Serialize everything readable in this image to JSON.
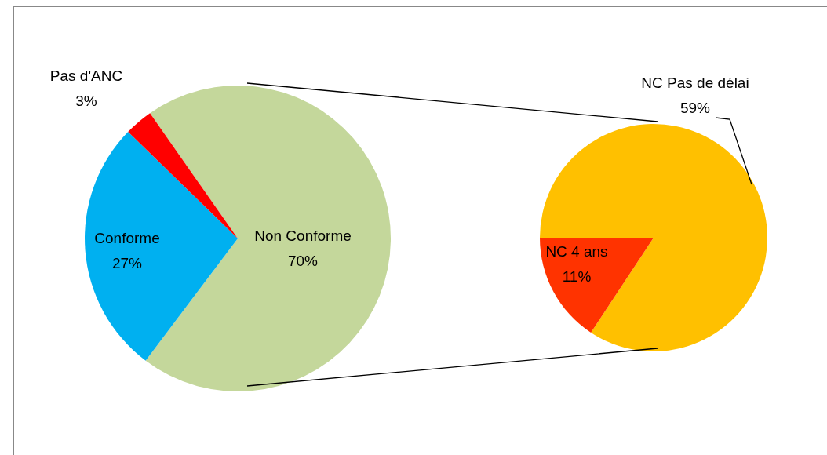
{
  "chart_data": [
    {
      "type": "pie",
      "categories": [
        "Non Conforme",
        "Conforme",
        "Pas d'ANC"
      ],
      "values": [
        70,
        27,
        3
      ],
      "value_labels": [
        "70%",
        "27%",
        "3%"
      ],
      "colors": [
        "#c4d79b",
        "#00b0f0",
        "#ff0000"
      ]
    },
    {
      "type": "pie",
      "categories": [
        "NC Pas de délai",
        "NC 4 ans"
      ],
      "values": [
        59,
        11
      ],
      "value_labels": [
        "59%",
        "11%"
      ],
      "colors": [
        "#ffc000",
        "#ff3300"
      ]
    }
  ]
}
